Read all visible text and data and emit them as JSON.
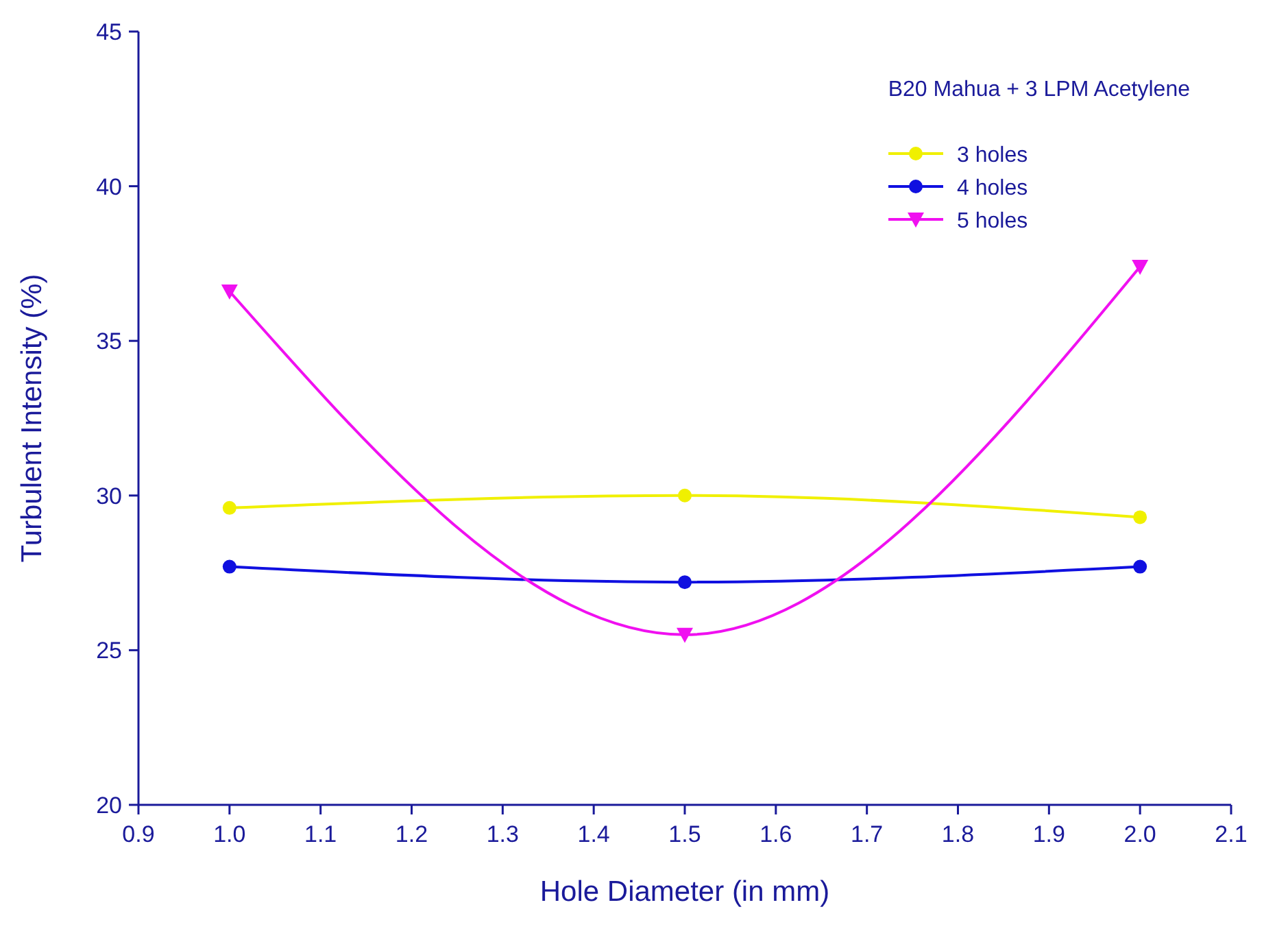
{
  "chart_data": {
    "type": "line",
    "xlabel": "Hole Diameter (in mm)",
    "ylabel": "Turbulent Intensity (%)",
    "annotations": [
      "B20 Mahua + 3 LPM Acetylene"
    ],
    "x": [
      1.0,
      1.5,
      2.0
    ],
    "series": [
      {
        "name": "3 holes",
        "color": "#f0f000",
        "marker": "circle",
        "values": [
          29.6,
          30.0,
          29.3
        ]
      },
      {
        "name": "4 holes",
        "color": "#1010e0",
        "marker": "circle",
        "values": [
          27.7,
          27.2,
          27.7
        ]
      },
      {
        "name": "5 holes",
        "color": "#f010f0",
        "marker": "triangle",
        "values": [
          36.6,
          25.5,
          37.4
        ]
      }
    ],
    "xlim": [
      0.9,
      2.1
    ],
    "xticks": [
      {
        "value": 0.9,
        "label": "0.9"
      },
      {
        "value": 1.0,
        "label": "1.0"
      },
      {
        "value": 1.1,
        "label": "1.1"
      },
      {
        "value": 1.2,
        "label": "1.2"
      },
      {
        "value": 1.3,
        "label": "1.3"
      },
      {
        "value": 1.4,
        "label": "1.4"
      },
      {
        "value": 1.5,
        "label": "1.5"
      },
      {
        "value": 1.6,
        "label": "1.6"
      },
      {
        "value": 1.7,
        "label": "1.7"
      },
      {
        "value": 1.8,
        "label": "1.8"
      },
      {
        "value": 1.9,
        "label": "1.9"
      },
      {
        "value": 2.0,
        "label": "2.0"
      },
      {
        "value": 2.1,
        "label": "2.1"
      }
    ],
    "ylim": [
      20,
      45
    ],
    "yticks": [
      20,
      25,
      30,
      35,
      40,
      45
    ],
    "grid": false,
    "legend": "top right",
    "line_style": "solid"
  }
}
